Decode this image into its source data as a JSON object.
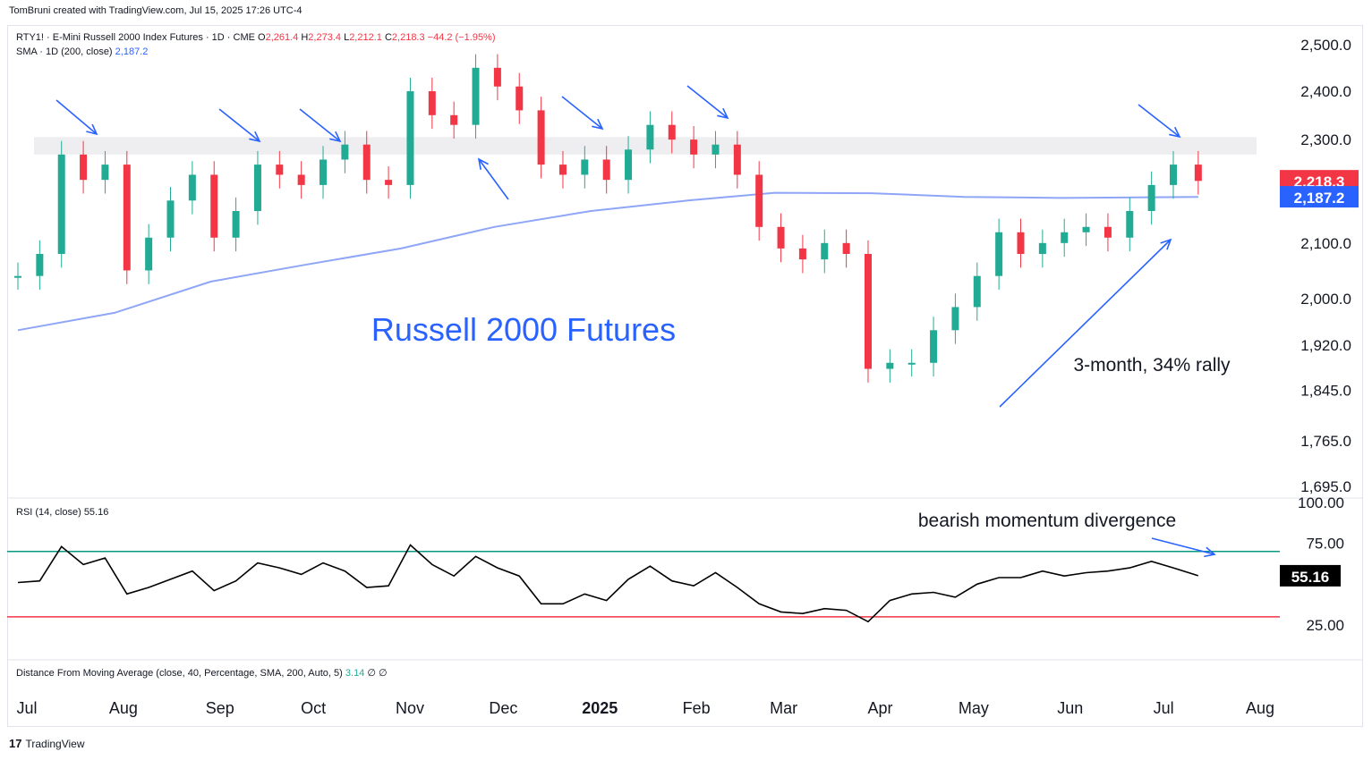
{
  "credit": "TomBruni created with TradingView.com, Jul 15, 2025 17:26 UTC-4",
  "footer": {
    "logo": "17",
    "brand": "TradingView"
  },
  "legend": {
    "symbol": "RTY1! · E-Mini Russell 2000 Index Futures · 1D · CME",
    "open_label": "O",
    "open": "2,261.4",
    "high_label": "H",
    "high": "2,273.4",
    "low_label": "L",
    "low": "2,212.1",
    "close_label": "C",
    "close": "2,218.3",
    "change": "−44.2 (−1.95%)",
    "sma_label": "SMA · 1D (200, close)",
    "sma_value": "2,187.2"
  },
  "rsi_legend": {
    "label": "RSI (14, close)",
    "value": "55.16"
  },
  "dma_legend": {
    "label": "Distance From Moving Average (close, 40, Percentage, SMA, 200, Auto, 5)",
    "value": "3.14",
    "extra": "∅ ∅"
  },
  "annotations": {
    "title": "Russell 2000 Futures",
    "rally": "3-month, 34% rally",
    "divergence": "bearish momentum divergence"
  },
  "colors": {
    "up": "#22ab94",
    "down": "#f23645",
    "sma": "#8fa6f7",
    "rsi": "#000000",
    "annot": "#2962ff",
    "upper_band": "#089981",
    "lower_band": "#f23645",
    "zone": "#eeeef0"
  },
  "chart_data": [
    {
      "type": "line",
      "title": "RTY1! · E-Mini Russell 2000 Index Futures · 1D · CME",
      "x_ticks": [
        "Jul",
        "Aug",
        "Sep",
        "Oct",
        "Nov",
        "Dec",
        "2025",
        "Feb",
        "Mar",
        "Apr",
        "May",
        "Jun",
        "Jul",
        "Aug"
      ],
      "y_ticks": [
        "2,500.0",
        "2,400.0",
        "2,300.0",
        "2,100.0",
        "2,000.0",
        "1,920.0",
        "1,845.0",
        "1,765.0",
        "1,695.0"
      ],
      "ylim": [
        1690,
        2520
      ],
      "y_scale": "log",
      "resistance_zone": [
        2270,
        2305
      ],
      "last_price": {
        "label": "2,218.3",
        "value": 2218.3
      },
      "sma_last": {
        "label": "2,187.2",
        "value": 2187.2
      },
      "series": [
        {
          "name": "RTY1!",
          "x": [
            "2024-07-01",
            "2024-07-08",
            "2024-07-15",
            "2024-07-22",
            "2024-07-29",
            "2024-08-05",
            "2024-08-12",
            "2024-08-19",
            "2024-08-26",
            "2024-09-02",
            "2024-09-09",
            "2024-09-16",
            "2024-09-23",
            "2024-09-30",
            "2024-10-07",
            "2024-10-14",
            "2024-10-21",
            "2024-10-28",
            "2024-11-04",
            "2024-11-11",
            "2024-11-18",
            "2024-11-25",
            "2024-12-02",
            "2024-12-09",
            "2024-12-16",
            "2024-12-23",
            "2024-12-30",
            "2025-01-06",
            "2025-01-13",
            "2025-01-20",
            "2025-01-27",
            "2025-02-03",
            "2025-02-10",
            "2025-02-17",
            "2025-02-24",
            "2025-03-03",
            "2025-03-10",
            "2025-03-17",
            "2025-03-24",
            "2025-03-31",
            "2025-04-07",
            "2025-04-14",
            "2025-04-21",
            "2025-04-28",
            "2025-05-05",
            "2025-05-12",
            "2025-05-19",
            "2025-05-26",
            "2025-06-02",
            "2025-06-09",
            "2025-06-16",
            "2025-06-23",
            "2025-06-30",
            "2025-07-07",
            "2025-07-15"
          ],
          "values": [
            2040,
            2080,
            2270,
            2220,
            2250,
            2050,
            2110,
            2180,
            2230,
            2110,
            2160,
            2250,
            2230,
            2210,
            2260,
            2290,
            2220,
            2210,
            2400,
            2350,
            2330,
            2450,
            2410,
            2360,
            2250,
            2230,
            2260,
            2220,
            2280,
            2330,
            2300,
            2270,
            2290,
            2230,
            2130,
            2090,
            2070,
            2100,
            2080,
            1880,
            1890,
            1890,
            1945,
            1985,
            2040,
            2120,
            2080,
            2100,
            2120,
            2130,
            2110,
            2160,
            2210,
            2250,
            2218
          ]
        },
        {
          "name": "SMA · 1D (200, close)",
          "x": [
            "2024-07-01",
            "2024-08-01",
            "2024-09-01",
            "2024-10-01",
            "2024-11-01",
            "2024-12-01",
            "2025-01-01",
            "2025-02-01",
            "2025-03-01",
            "2025-04-01",
            "2025-05-01",
            "2025-06-01",
            "2025-07-15"
          ],
          "values": [
            1945,
            1975,
            2030,
            2060,
            2090,
            2130,
            2160,
            2180,
            2195,
            2194,
            2187,
            2185,
            2187
          ]
        }
      ]
    },
    {
      "type": "line",
      "title": "RSI (14, close)",
      "y_ticks": [
        "100.00",
        "75.00",
        "25.00"
      ],
      "ylim": [
        25,
        100
      ],
      "bands": [
        70,
        30
      ],
      "last_value": {
        "label": "55.16",
        "value": 55.16
      },
      "series": [
        {
          "name": "RSI (14, close)",
          "x": [
            "2024-07-01",
            "2024-07-08",
            "2024-07-15",
            "2024-07-22",
            "2024-07-29",
            "2024-08-05",
            "2024-08-12",
            "2024-08-19",
            "2024-08-26",
            "2024-09-02",
            "2024-09-09",
            "2024-09-16",
            "2024-09-23",
            "2024-09-30",
            "2024-10-07",
            "2024-10-14",
            "2024-10-21",
            "2024-10-28",
            "2024-11-04",
            "2024-11-11",
            "2024-11-18",
            "2024-11-25",
            "2024-12-02",
            "2024-12-09",
            "2024-12-16",
            "2024-12-23",
            "2024-12-30",
            "2025-01-06",
            "2025-01-13",
            "2025-01-20",
            "2025-01-27",
            "2025-02-03",
            "2025-02-10",
            "2025-02-17",
            "2025-02-24",
            "2025-03-03",
            "2025-03-10",
            "2025-03-17",
            "2025-03-24",
            "2025-03-31",
            "2025-04-07",
            "2025-04-14",
            "2025-04-21",
            "2025-04-28",
            "2025-05-05",
            "2025-05-12",
            "2025-05-19",
            "2025-05-26",
            "2025-06-02",
            "2025-06-09",
            "2025-06-16",
            "2025-06-23",
            "2025-06-30",
            "2025-07-07",
            "2025-07-15"
          ],
          "values": [
            51,
            52,
            73,
            62,
            66,
            44,
            48,
            53,
            58,
            46,
            52,
            63,
            60,
            56,
            63,
            58,
            48,
            49,
            74,
            62,
            55,
            67,
            60,
            55,
            38,
            38,
            44,
            40,
            53,
            61,
            52,
            49,
            57,
            48,
            38,
            33,
            32,
            35,
            34,
            27,
            40,
            44,
            45,
            42,
            50,
            54,
            54,
            58,
            55,
            57,
            58,
            60,
            64,
            60,
            55.16
          ]
        }
      ]
    }
  ]
}
